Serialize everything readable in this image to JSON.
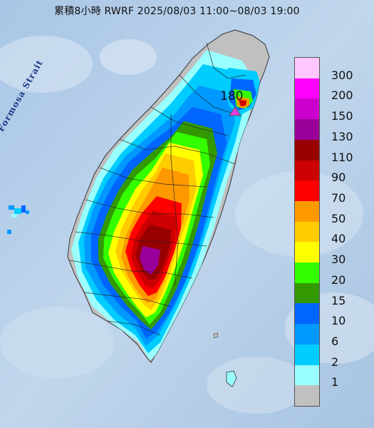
{
  "title": "累積8小時 RWRF 2025/08/03 11:00~08/03 19:00",
  "map": {
    "strait_label": "Formosa Strait",
    "max_marker_value": "180",
    "max_marker_color": "#e040e0"
  },
  "legend": {
    "levels": [
      {
        "label": "300",
        "color": "#ffc6ff"
      },
      {
        "label": "200",
        "color": "#ff00ff"
      },
      {
        "label": "150",
        "color": "#cc00cc"
      },
      {
        "label": "130",
        "color": "#990099"
      },
      {
        "label": "110",
        "color": "#990000"
      },
      {
        "label": "90",
        "color": "#cc0000"
      },
      {
        "label": "70",
        "color": "#ff0000"
      },
      {
        "label": "50",
        "color": "#ff9900"
      },
      {
        "label": "40",
        "color": "#ffcc00"
      },
      {
        "label": "30",
        "color": "#ffff00"
      },
      {
        "label": "20",
        "color": "#33ff00"
      },
      {
        "label": "15",
        "color": "#339900"
      },
      {
        "label": "10",
        "color": "#0066ff"
      },
      {
        "label": "6",
        "color": "#0099ff"
      },
      {
        "label": "2",
        "color": "#00ccff"
      },
      {
        "label": "1",
        "color": "#99ffff"
      },
      {
        "label": "",
        "color": "#c0c0c0"
      }
    ]
  }
}
